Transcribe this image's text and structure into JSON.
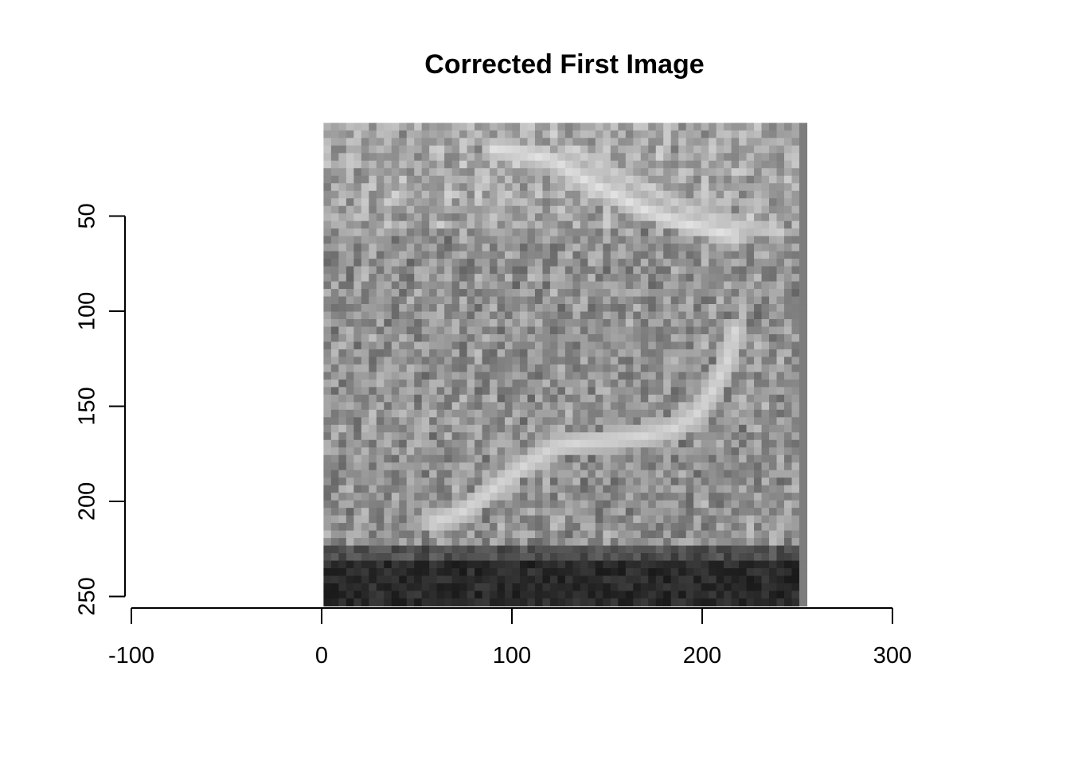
{
  "chart_data": {
    "type": "heatmap",
    "title": "Corrected First Image",
    "xlabel": "",
    "ylabel": "",
    "colormap": "grayscale",
    "x_ticks": [
      "-100",
      "0",
      "100",
      "200",
      "300"
    ],
    "x_tick_values": [
      -100,
      0,
      100,
      200,
      300
    ],
    "xlim": [
      -100,
      300
    ],
    "y_ticks": [
      "50",
      "100",
      "150",
      "200",
      "250"
    ],
    "y_tick_values": [
      50,
      100,
      150,
      200,
      250
    ],
    "ylim": [
      50,
      250
    ],
    "y_reversed": true,
    "image_extent": {
      "x": [
        1,
        255
      ],
      "y": [
        1,
        255
      ]
    },
    "grid": false,
    "legend": "none"
  }
}
